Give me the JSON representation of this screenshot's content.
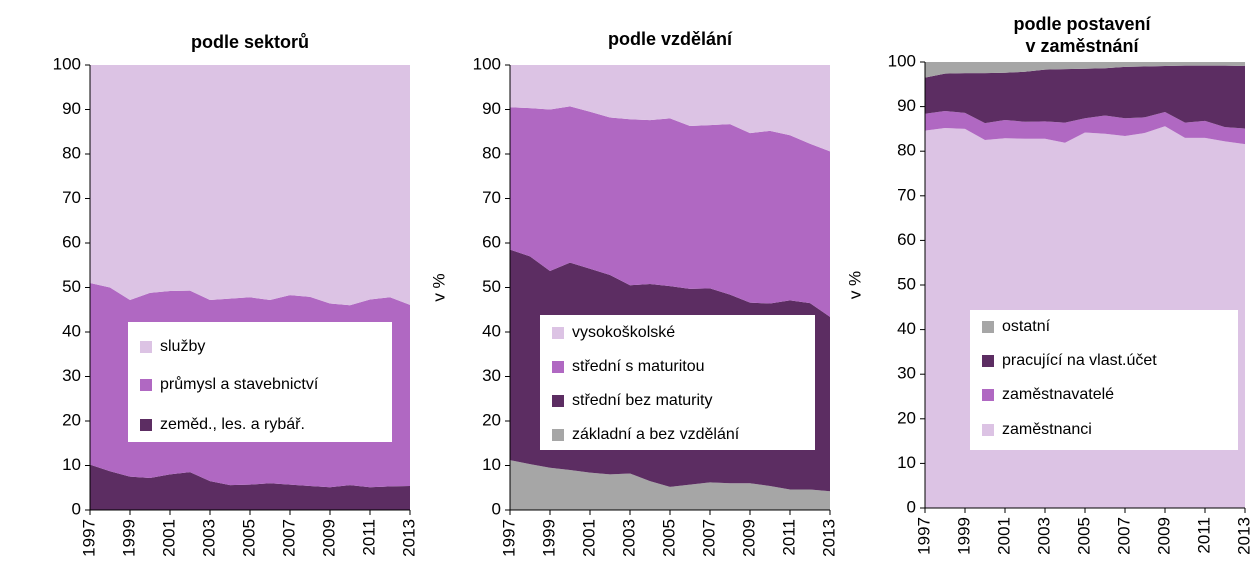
{
  "chart_data": [
    {
      "type": "area",
      "stacked": true,
      "title": [
        "podle sektorů"
      ],
      "x": [
        1997,
        1998,
        1999,
        2000,
        2001,
        2002,
        2003,
        2004,
        2005,
        2006,
        2007,
        2008,
        2009,
        2010,
        2011,
        2012,
        2013
      ],
      "xlim": [
        1997,
        2013
      ],
      "xticks": [
        1997,
        1999,
        2001,
        2003,
        2005,
        2007,
        2009,
        2011,
        2013
      ],
      "ylim": [
        0,
        100
      ],
      "yticks": [
        0,
        10,
        20,
        30,
        40,
        50,
        60,
        70,
        80,
        90,
        100
      ],
      "series": [
        {
          "name": "zeměd., les. a rybář.",
          "color": "#5c2d62",
          "values": [
            10.2,
            8.7,
            7.5,
            7.2,
            8.0,
            8.5,
            6.5,
            5.6,
            5.7,
            6.0,
            5.7,
            5.4,
            5.1,
            5.6,
            5.1,
            5.3,
            5.4
          ]
        },
        {
          "name": "průmysl a stavebnictví",
          "color": "#b068c2",
          "values": [
            40.8,
            41.3,
            39.7,
            41.6,
            41.2,
            40.8,
            40.7,
            41.9,
            42.1,
            41.2,
            42.6,
            42.5,
            41.3,
            40.4,
            42.2,
            42.5,
            40.7
          ]
        },
        {
          "name": "služby",
          "color": "#dcc3e4",
          "values": [
            49.0,
            50.0,
            52.8,
            51.2,
            50.8,
            50.7,
            52.8,
            52.5,
            52.2,
            52.8,
            51.7,
            52.1,
            53.6,
            54.0,
            52.7,
            52.2,
            53.9
          ]
        }
      ]
    },
    {
      "type": "area",
      "stacked": true,
      "title": [
        "podle vzdělání"
      ],
      "ylabel": "v %",
      "x": [
        1997,
        1998,
        1999,
        2000,
        2001,
        2002,
        2003,
        2004,
        2005,
        2006,
        2007,
        2008,
        2009,
        2010,
        2011,
        2012,
        2013
      ],
      "xlim": [
        1997,
        2013
      ],
      "xticks": [
        1997,
        1999,
        2001,
        2003,
        2005,
        2007,
        2009,
        2011,
        2013
      ],
      "ylim": [
        0,
        100
      ],
      "yticks": [
        0,
        10,
        20,
        30,
        40,
        50,
        60,
        70,
        80,
        90,
        100
      ],
      "series": [
        {
          "name": "základní a bez vzdělání",
          "color": "#a6a6a6",
          "values": [
            11.2,
            10.3,
            9.5,
            9.0,
            8.4,
            8.0,
            8.2,
            6.5,
            5.2,
            5.7,
            6.2,
            6.0,
            6.0,
            5.4,
            4.6,
            4.6,
            4.2
          ]
        },
        {
          "name": "střední bez maturity",
          "color": "#5c2d62",
          "values": [
            47.3,
            46.7,
            44.2,
            46.6,
            45.8,
            44.8,
            42.3,
            44.3,
            45.1,
            44.0,
            43.6,
            42.4,
            40.6,
            41.0,
            42.5,
            41.9,
            39.2
          ]
        },
        {
          "name": "střední s maturitou",
          "color": "#b068c2",
          "values": [
            32.0,
            33.3,
            36.3,
            35.1,
            35.3,
            35.4,
            37.3,
            36.8,
            37.7,
            36.6,
            36.7,
            38.3,
            38.1,
            38.8,
            37.1,
            35.8,
            37.2
          ]
        },
        {
          "name": "vysokoškolské",
          "color": "#dcc3e4",
          "values": [
            9.5,
            9.7,
            10.0,
            9.3,
            10.5,
            11.8,
            12.2,
            12.4,
            12.0,
            13.7,
            13.5,
            13.3,
            15.3,
            14.8,
            15.8,
            17.7,
            19.4
          ]
        }
      ]
    },
    {
      "type": "area",
      "stacked": true,
      "title": [
        "podle postavení",
        "v zaměstnání"
      ],
      "ylabel": "v %",
      "x": [
        1997,
        1998,
        1999,
        2000,
        2001,
        2002,
        2003,
        2004,
        2005,
        2006,
        2007,
        2008,
        2009,
        2010,
        2011,
        2012,
        2013
      ],
      "xlim": [
        1997,
        2013
      ],
      "xticks": [
        1997,
        1999,
        2001,
        2003,
        2005,
        2007,
        2009,
        2011,
        2013
      ],
      "ylim": [
        0,
        100
      ],
      "yticks": [
        0,
        10,
        20,
        30,
        40,
        50,
        60,
        70,
        80,
        90,
        100
      ],
      "series": [
        {
          "name": "zaměstnanci",
          "color": "#dcc3e4",
          "values": [
            84.6,
            85.2,
            85.0,
            82.5,
            82.9,
            82.8,
            82.8,
            81.9,
            84.2,
            83.9,
            83.4,
            84.1,
            85.6,
            83.0,
            83.0,
            82.2,
            81.6
          ]
        },
        {
          "name": "zaměstnavatelé",
          "color": "#b068c2",
          "values": [
            3.8,
            3.8,
            3.6,
            3.8,
            4.1,
            3.8,
            3.9,
            4.5,
            3.2,
            4.1,
            4.0,
            3.5,
            3.2,
            3.4,
            3.8,
            3.2,
            3.5
          ]
        },
        {
          "name": "pracující na vlast.účet",
          "color": "#5c2d62",
          "values": [
            8.1,
            8.4,
            8.9,
            11.2,
            10.6,
            11.2,
            11.6,
            12.0,
            11.1,
            10.6,
            11.5,
            11.4,
            10.3,
            12.8,
            12.4,
            13.8,
            14.0
          ]
        },
        {
          "name": "ostatní",
          "color": "#a6a6a6",
          "values": [
            3.5,
            2.6,
            2.5,
            2.5,
            2.4,
            2.2,
            1.7,
            1.6,
            1.5,
            1.4,
            1.1,
            1.0,
            0.9,
            0.8,
            0.8,
            0.8,
            0.9
          ]
        }
      ]
    }
  ]
}
